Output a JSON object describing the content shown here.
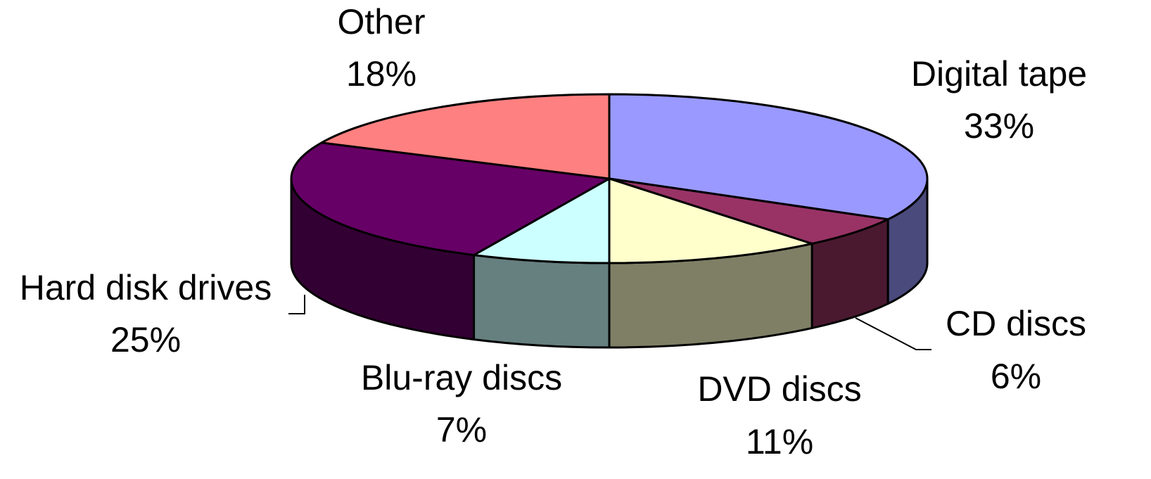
{
  "chart_data": {
    "type": "pie",
    "title": "",
    "three_d": true,
    "start_angle_deg": 90,
    "direction": "clockwise",
    "slices": [
      {
        "label": "Digital tape",
        "value": 33,
        "pct_text": "33%",
        "top": "#9999ff",
        "side": "#4a4a7c"
      },
      {
        "label": "CD discs",
        "value": 6,
        "pct_text": "6%",
        "top": "#993366",
        "side": "#4a1930"
      },
      {
        "label": "DVD discs",
        "value": 11,
        "pct_text": "11%",
        "top": "#ffffcc",
        "side": "#7f7f66"
      },
      {
        "label": "Blu-ray discs",
        "value": 7,
        "pct_text": "7%",
        "top": "#ccffff",
        "side": "#667f7f"
      },
      {
        "label": "Hard disk drives",
        "value": 25,
        "pct_text": "25%",
        "top": "#660066",
        "side": "#330033"
      },
      {
        "label": "Other",
        "value": 18,
        "pct_text": "18%",
        "top": "#ff8080",
        "side": "#7f4040"
      }
    ],
    "label_lines": [
      "CD discs",
      "Hard disk drives"
    ]
  }
}
